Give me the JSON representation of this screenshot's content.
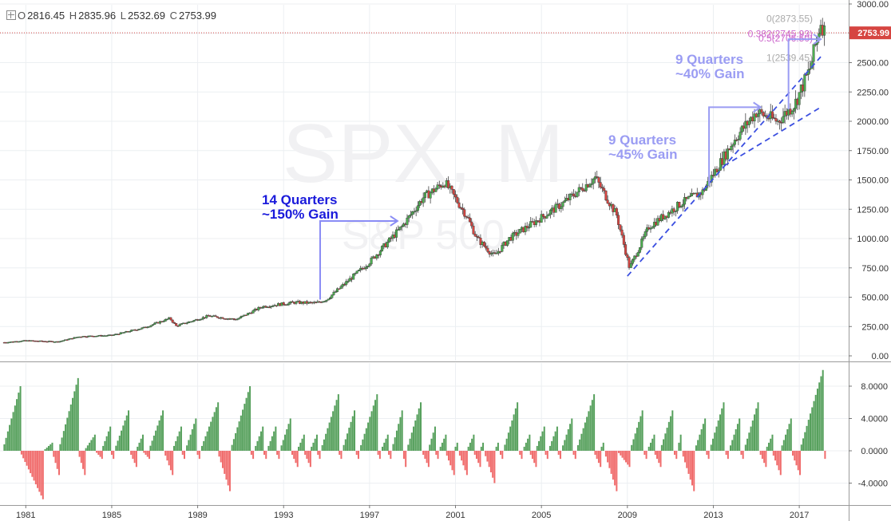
{
  "header": {
    "o_key": "O",
    "o_val": "2816.45",
    "h_key": "H",
    "h_val": "2835.96",
    "l_key": "L",
    "l_val": "2532.69",
    "c_key": "C",
    "c_val": "2753.99"
  },
  "watermark": {
    "symbol": "SPX, M",
    "name": "S&P 500"
  },
  "colors": {
    "up": "#4caf50",
    "down": "#d64541",
    "annotation_dark": "#1a1adb",
    "annotation_light": "#9a9cf3",
    "fib": "#cc66cc",
    "last_price_bg": "#d64541",
    "trend": "#3b4fe0"
  },
  "chart_data": [
    {
      "type": "candlestick",
      "title": "SPX, M",
      "subtitle": "S&P 500",
      "timeframe": "monthly",
      "x_ticks": [
        "1981",
        "1985",
        "1989",
        "1993",
        "1997",
        "2001",
        "2005",
        "2009",
        "2013",
        "2017"
      ],
      "x_range": [
        1979.8,
        2019.3
      ],
      "ylim": [
        -50,
        3000
      ],
      "y_ticks": [
        0,
        250,
        500,
        750,
        1000,
        1250,
        1500,
        1750,
        2000,
        2250,
        2500,
        2750,
        3000
      ],
      "y_tick_labels": [
        "0.00",
        "250.00",
        "500.00",
        "750.00",
        "1000.00",
        "1250.00",
        "1500.00",
        "1750.00",
        "2000.00",
        "2250.00",
        "2500.00",
        "2750.00",
        "3000.00"
      ],
      "last_price": 2753.99,
      "last_price_label": "2753.99",
      "price_path": [
        [
          1980.0,
          115
        ],
        [
          1981.0,
          130
        ],
        [
          1982.5,
          120
        ],
        [
          1983.5,
          165
        ],
        [
          1985.0,
          175
        ],
        [
          1986.5,
          240
        ],
        [
          1987.7,
          320
        ],
        [
          1988.0,
          255
        ],
        [
          1989.5,
          340
        ],
        [
          1990.8,
          310
        ],
        [
          1992.0,
          420
        ],
        [
          1993.5,
          455
        ],
        [
          1994.5,
          450
        ],
        [
          1995.0,
          480
        ],
        [
          1996.0,
          640
        ],
        [
          1997.0,
          800
        ],
        [
          1998.5,
          1100
        ],
        [
          1999.5,
          1350
        ],
        [
          2000.5,
          1480
        ],
        [
          2001.5,
          1200
        ],
        [
          2002.0,
          1000
        ],
        [
          2002.8,
          850
        ],
        [
          2003.5,
          1000
        ],
        [
          2004.5,
          1120
        ],
        [
          2006.0,
          1300
        ],
        [
          2007.5,
          1520
        ],
        [
          2008.5,
          1200
        ],
        [
          2009.1,
          750
        ],
        [
          2010.0,
          1100
        ],
        [
          2011.5,
          1300
        ],
        [
          2012.5,
          1400
        ],
        [
          2014.0,
          1850
        ],
        [
          2015.0,
          2080
        ],
        [
          2016.0,
          2000
        ],
        [
          2016.8,
          2150
        ],
        [
          2017.5,
          2450
        ],
        [
          2018.0,
          2850
        ],
        [
          2018.2,
          2753.99
        ]
      ],
      "fibonacci": [
        {
          "label": "0(2873.55)",
          "value": 2873.55
        },
        {
          "label": "0.382(2745.93)",
          "value": 2745.93
        },
        {
          "label": "0.5(2706.50)",
          "value": 2706.5
        },
        {
          "label": "1(2539.45)",
          "value": 2539.45
        }
      ],
      "trendlines": [
        {
          "from": [
            2009.0,
            680
          ],
          "to": [
            2018.0,
            2550
          ]
        },
        {
          "from": [
            2013.5,
            1620
          ],
          "to": [
            2018.0,
            2120
          ]
        }
      ],
      "annotations": [
        {
          "lines": [
            "14 Quarters",
            "~150% Gain"
          ],
          "from": [
            1994.7,
            480
          ],
          "to": [
            1998.3,
            1150
          ]
        },
        {
          "lines": [
            "9 Quarters",
            "~45% Gain"
          ],
          "from": [
            2012.8,
            1450
          ],
          "to": [
            2015.2,
            2120
          ]
        },
        {
          "lines": [
            "9 Quarters",
            "~40% Gain"
          ],
          "from": [
            2016.5,
            2100
          ],
          "to": [
            2018.0,
            2700
          ]
        }
      ]
    },
    {
      "type": "bar",
      "title": "",
      "description": "Consecutive up/down month streak counter",
      "ylim": [
        -5,
        10
      ],
      "y_ticks": [
        -4,
        0,
        4,
        8
      ],
      "y_tick_labels": [
        "-4.0000",
        "0.0000",
        "4.0000",
        "8.0000"
      ],
      "streaks": [
        {
          "start": 1980.0,
          "up": 8
        },
        {
          "start": 1980.8,
          "down": -6
        },
        {
          "start": 1981.9,
          "up": 1
        },
        {
          "start": 1982.3,
          "down": -3
        },
        {
          "start": 1982.6,
          "up": 9
        },
        {
          "start": 1983.5,
          "down": -3
        },
        {
          "start": 1983.8,
          "up": 2
        },
        {
          "start": 1984.3,
          "down": -1
        },
        {
          "start": 1984.6,
          "up": 3
        },
        {
          "start": 1985.0,
          "down": -1
        },
        {
          "start": 1985.2,
          "up": 5
        },
        {
          "start": 1985.9,
          "down": -2
        },
        {
          "start": 1986.2,
          "up": 2
        },
        {
          "start": 1986.5,
          "down": -1
        },
        {
          "start": 1986.8,
          "up": 5
        },
        {
          "start": 1987.5,
          "down": -3
        },
        {
          "start": 1987.9,
          "up": 3
        },
        {
          "start": 1988.3,
          "down": -1
        },
        {
          "start": 1988.5,
          "up": 4
        },
        {
          "start": 1989.0,
          "down": -1
        },
        {
          "start": 1989.2,
          "up": 6
        },
        {
          "start": 1990.0,
          "down": -5
        },
        {
          "start": 1990.6,
          "up": 8
        },
        {
          "start": 1991.5,
          "down": -1
        },
        {
          "start": 1991.7,
          "up": 3
        },
        {
          "start": 1992.1,
          "down": -1
        },
        {
          "start": 1992.3,
          "up": 3
        },
        {
          "start": 1992.7,
          "down": -1
        },
        {
          "start": 1992.9,
          "up": 4
        },
        {
          "start": 1993.4,
          "down": -2
        },
        {
          "start": 1993.7,
          "up": 2
        },
        {
          "start": 1994.0,
          "down": -2
        },
        {
          "start": 1994.3,
          "up": 2
        },
        {
          "start": 1994.6,
          "down": -1
        },
        {
          "start": 1994.8,
          "up": 7
        },
        {
          "start": 1995.6,
          "down": -1
        },
        {
          "start": 1995.8,
          "up": 5
        },
        {
          "start": 1996.4,
          "down": -1
        },
        {
          "start": 1996.6,
          "up": 7
        },
        {
          "start": 1997.4,
          "down": -1
        },
        {
          "start": 1997.6,
          "up": 2
        },
        {
          "start": 1997.9,
          "down": -1
        },
        {
          "start": 1998.1,
          "up": 5
        },
        {
          "start": 1998.6,
          "down": -2
        },
        {
          "start": 1998.8,
          "up": 6
        },
        {
          "start": 1999.5,
          "down": -2
        },
        {
          "start": 1999.8,
          "up": 3
        },
        {
          "start": 2000.1,
          "down": -1
        },
        {
          "start": 2000.3,
          "up": 2
        },
        {
          "start": 2000.6,
          "down": -3
        },
        {
          "start": 2001.0,
          "up": 1
        },
        {
          "start": 2001.2,
          "down": -3
        },
        {
          "start": 2001.6,
          "up": 2
        },
        {
          "start": 2001.9,
          "down": -2
        },
        {
          "start": 2002.2,
          "up": 1
        },
        {
          "start": 2002.4,
          "down": -4
        },
        {
          "start": 2002.9,
          "up": 1
        },
        {
          "start": 2003.1,
          "down": -1
        },
        {
          "start": 2003.3,
          "up": 6
        },
        {
          "start": 2004.0,
          "down": -1
        },
        {
          "start": 2004.2,
          "up": 2
        },
        {
          "start": 2004.5,
          "down": -2
        },
        {
          "start": 2004.8,
          "up": 3
        },
        {
          "start": 2005.2,
          "down": -1
        },
        {
          "start": 2005.4,
          "up": 3
        },
        {
          "start": 2005.8,
          "down": -1
        },
        {
          "start": 2006.0,
          "up": 4
        },
        {
          "start": 2006.5,
          "down": -1
        },
        {
          "start": 2006.7,
          "up": 7
        },
        {
          "start": 2007.5,
          "down": -2
        },
        {
          "start": 2007.8,
          "up": 1
        },
        {
          "start": 2008.0,
          "down": -5
        },
        {
          "start": 2008.6,
          "down": -2
        },
        {
          "start": 2009.2,
          "up": 5
        },
        {
          "start": 2009.8,
          "down": -1
        },
        {
          "start": 2010.0,
          "up": 2
        },
        {
          "start": 2010.3,
          "down": -2
        },
        {
          "start": 2010.6,
          "up": 5
        },
        {
          "start": 2011.2,
          "down": -1
        },
        {
          "start": 2011.4,
          "up": 2
        },
        {
          "start": 2011.6,
          "down": -5
        },
        {
          "start": 2012.2,
          "up": 4
        },
        {
          "start": 2012.7,
          "down": -1
        },
        {
          "start": 2012.9,
          "up": 6
        },
        {
          "start": 2013.6,
          "down": -1
        },
        {
          "start": 2013.8,
          "up": 4
        },
        {
          "start": 2014.3,
          "down": -1
        },
        {
          "start": 2014.5,
          "up": 6
        },
        {
          "start": 2015.2,
          "down": -2
        },
        {
          "start": 2015.5,
          "up": 2
        },
        {
          "start": 2015.8,
          "down": -3
        },
        {
          "start": 2016.2,
          "up": 4
        },
        {
          "start": 2016.7,
          "down": -3
        },
        {
          "start": 2017.1,
          "up": 10
        },
        {
          "start": 2018.2,
          "down": -1
        }
      ]
    }
  ]
}
